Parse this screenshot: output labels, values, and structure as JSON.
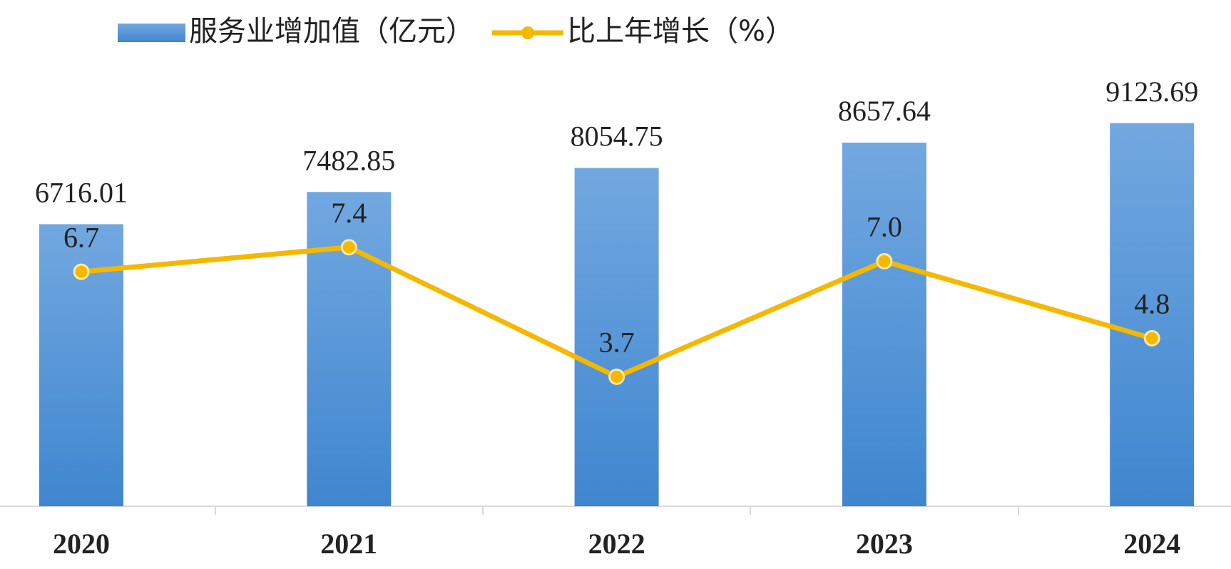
{
  "chart_data": {
    "type": "bar-line",
    "categories": [
      "2020",
      "2021",
      "2022",
      "2023",
      "2024"
    ],
    "series": [
      {
        "name": "服务业增加值（亿元）",
        "type": "bar",
        "color": "#4a8fd4",
        "values": [
          6716.01,
          7482.85,
          8054.75,
          8657.64,
          9123.69
        ]
      },
      {
        "name": "比上年增长（%）",
        "type": "line",
        "axis": "y2",
        "color": "#f5b800",
        "values": [
          6.7,
          7.4,
          3.7,
          7.0,
          4.8
        ],
        "value_labels": [
          "6.7",
          "7.4",
          "3.7",
          "7.0",
          "4.8"
        ]
      }
    ],
    "ylim": [
      0,
      10000
    ],
    "y2lim": [
      0,
      12
    ],
    "legend": "top"
  }
}
